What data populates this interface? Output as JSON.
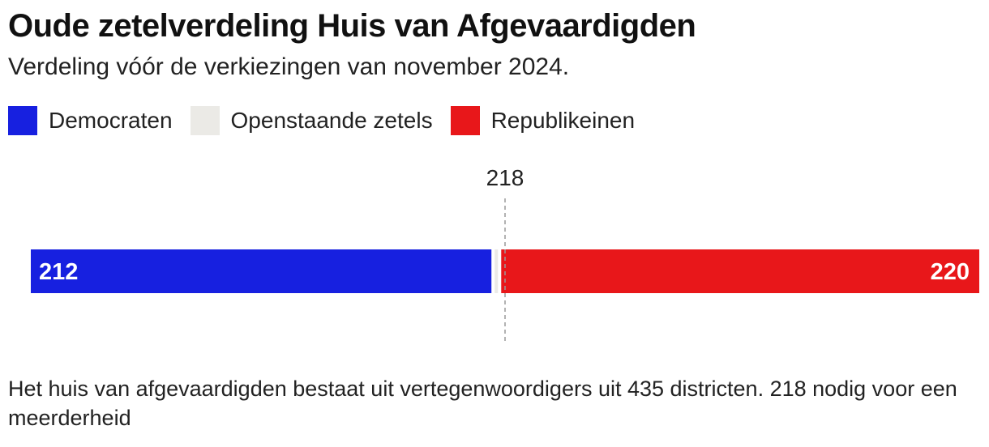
{
  "title": "Oude zetelverdeling Huis van Afgevaardigden",
  "subtitle": "Verdeling vóór de verkiezingen van november 2024.",
  "legend": [
    {
      "label": "Democraten",
      "color": "#1720e0"
    },
    {
      "label": "Openstaande zetels",
      "color": "#ebeae6"
    },
    {
      "label": "Republikeinen",
      "color": "#e8171a"
    }
  ],
  "note": "Het huis van afgevaardigden bestaat uit vertegenwoordigers uit 435 districten. 218 nodig voor een meerderheid",
  "chart_data": {
    "type": "bar",
    "orientation": "horizontal-stacked",
    "total": 435,
    "majority": 218,
    "majority_label": "218",
    "series": [
      {
        "name": "Democraten",
        "value": 212,
        "label": "212",
        "color": "#1720e0"
      },
      {
        "name": "Openstaande zetels",
        "value": 3,
        "label": "",
        "color": "#ebeae6"
      },
      {
        "name": "Republikeinen",
        "value": 220,
        "label": "220",
        "color": "#e8171a"
      }
    ]
  }
}
